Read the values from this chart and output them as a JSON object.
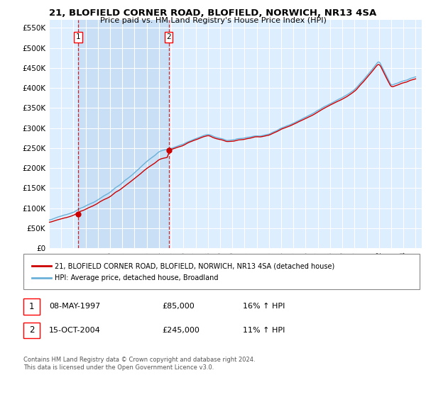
{
  "title": "21, BLOFIELD CORNER ROAD, BLOFIELD, NORWICH, NR13 4SA",
  "subtitle": "Price paid vs. HM Land Registry's House Price Index (HPI)",
  "legend_line1": "21, BLOFIELD CORNER ROAD, BLOFIELD, NORWICH, NR13 4SA (detached house)",
  "legend_line2": "HPI: Average price, detached house, Broadland",
  "footnote1": "Contains HM Land Registry data © Crown copyright and database right 2024.",
  "footnote2": "This data is licensed under the Open Government Licence v3.0.",
  "table_row1": [
    "1",
    "08-MAY-1997",
    "£85,000",
    "16% ↑ HPI"
  ],
  "table_row2": [
    "2",
    "15-OCT-2004",
    "£245,000",
    "11% ↑ HPI"
  ],
  "ylim": [
    0,
    570000
  ],
  "yticks": [
    0,
    50000,
    100000,
    150000,
    200000,
    250000,
    300000,
    350000,
    400000,
    450000,
    500000,
    550000
  ],
  "ytick_labels": [
    "£0",
    "£50K",
    "£100K",
    "£150K",
    "£200K",
    "£250K",
    "£300K",
    "£350K",
    "£400K",
    "£450K",
    "£500K",
    "£550K"
  ],
  "sale1_year": 1997.37,
  "sale1_price": 85000,
  "sale2_year": 2004.79,
  "sale2_price": 245000,
  "hpi_color": "#6ab0d8",
  "price_color": "#cc0000",
  "bg_color": "#ddeeff",
  "shade_color": "#c8dff5",
  "grid_color": "#ffffff",
  "marker_color": "#cc0000"
}
